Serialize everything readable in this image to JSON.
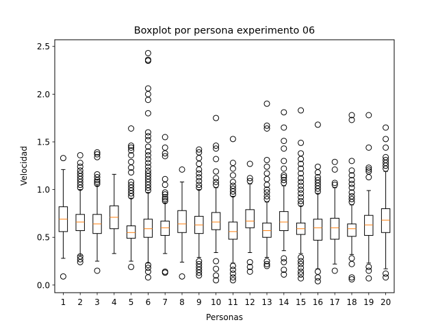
{
  "chart_data": {
    "type": "boxplot",
    "title": "Boxplot por persona experimento 06",
    "xlabel": "Personas",
    "ylabel": "Velocidad",
    "ylim": [
      -0.08,
      2.57
    ],
    "xlim": [
      0.5,
      20.5
    ],
    "yticks": [
      0.0,
      0.5,
      1.0,
      1.5,
      2.0,
      2.5
    ],
    "ytick_labels": [
      "0.0",
      "0.5",
      "1.0",
      "1.5",
      "2.0",
      "2.5"
    ],
    "grid": false,
    "box_color": "#000000",
    "median_color": "#ff7f0e",
    "categories": [
      "1",
      "2",
      "3",
      "4",
      "5",
      "6",
      "7",
      "8",
      "9",
      "10",
      "11",
      "12",
      "13",
      "14",
      "15",
      "16",
      "17",
      "18",
      "19",
      "20"
    ],
    "boxes": [
      {
        "label": "1",
        "whislo": 0.28,
        "q1": 0.56,
        "med": 0.69,
        "q3": 0.82,
        "whishi": 1.21,
        "fliers": [
          0.09,
          1.33
        ]
      },
      {
        "label": "2",
        "whislo": 0.31,
        "q1": 0.57,
        "med": 0.66,
        "q3": 0.74,
        "whishi": 1.0,
        "fliers": [
          0.24,
          0.27,
          0.3,
          1.02,
          1.05,
          1.08,
          1.11,
          1.14,
          1.17,
          1.2,
          1.24,
          1.28,
          1.36
        ]
      },
      {
        "label": "3",
        "whislo": 0.25,
        "q1": 0.54,
        "med": 0.64,
        "q3": 0.74,
        "whishi": 1.04,
        "fliers": [
          0.15,
          1.06,
          1.08,
          1.1,
          1.13,
          1.16,
          1.34,
          1.37,
          1.39
        ]
      },
      {
        "label": "4",
        "whislo": 0.33,
        "q1": 0.59,
        "med": 0.71,
        "q3": 0.83,
        "whishi": 1.16,
        "fliers": []
      },
      {
        "label": "5",
        "whislo": 0.25,
        "q1": 0.49,
        "med": 0.55,
        "q3": 0.62,
        "whishi": 0.91,
        "fliers": [
          0.19,
          0.93,
          0.96,
          0.99,
          1.02,
          1.05,
          1.08,
          1.18,
          1.23,
          1.29,
          1.36,
          1.41,
          1.44,
          1.46,
          1.64
        ]
      },
      {
        "label": "6",
        "whislo": 0.23,
        "q1": 0.5,
        "med": 0.59,
        "q3": 0.69,
        "whishi": 0.97,
        "fliers": [
          0.08,
          0.14,
          0.18,
          0.21,
          0.99,
          1.02,
          1.05,
          1.08,
          1.11,
          1.14,
          1.17,
          1.2,
          1.24,
          1.28,
          1.32,
          1.36,
          1.4,
          1.45,
          1.52,
          1.56,
          1.6,
          1.8,
          1.94,
          2.0,
          2.06,
          2.35,
          2.36,
          2.43
        ]
      },
      {
        "label": "7",
        "whislo": 0.33,
        "q1": 0.52,
        "med": 0.6,
        "q3": 0.67,
        "whishi": 0.86,
        "fliers": [
          0.13,
          0.14,
          0.88,
          0.9,
          0.92,
          0.95,
          0.97,
          1.05,
          1.11,
          1.35,
          1.38,
          1.44,
          1.55
        ]
      },
      {
        "label": "8",
        "whislo": 0.24,
        "q1": 0.55,
        "med": 0.64,
        "q3": 0.78,
        "whishi": 1.08,
        "fliers": [
          0.09,
          1.21
        ]
      },
      {
        "label": "9",
        "whislo": 0.29,
        "q1": 0.54,
        "med": 0.63,
        "q3": 0.72,
        "whishi": 1.0,
        "fliers": [
          0.1,
          0.13,
          0.16,
          0.19,
          0.22,
          0.25,
          1.02,
          1.05,
          1.09,
          1.13,
          1.17,
          1.21,
          1.27,
          1.33,
          1.39,
          1.42
        ]
      },
      {
        "label": "10",
        "whislo": 0.34,
        "q1": 0.58,
        "med": 0.66,
        "q3": 0.76,
        "whishi": 1.02,
        "fliers": [
          0.05,
          0.1,
          0.17,
          0.25,
          1.05,
          1.08,
          1.12,
          1.19,
          1.32,
          1.43,
          1.46,
          1.75
        ]
      },
      {
        "label": "11",
        "whislo": 0.23,
        "q1": 0.48,
        "med": 0.56,
        "q3": 0.66,
        "whishi": 0.93,
        "fliers": [
          0.05,
          0.08,
          0.12,
          0.16,
          0.2,
          0.95,
          0.98,
          1.01,
          1.04,
          1.08,
          1.15,
          1.22,
          1.28,
          1.53
        ]
      },
      {
        "label": "12",
        "whislo": 0.34,
        "q1": 0.6,
        "med": 0.67,
        "q3": 0.79,
        "whishi": 1.06,
        "fliers": [
          0.14,
          0.19,
          0.24,
          1.09,
          1.12,
          1.27
        ]
      },
      {
        "label": "13",
        "whislo": 0.29,
        "q1": 0.5,
        "med": 0.57,
        "q3": 0.65,
        "whishi": 0.87,
        "fliers": [
          0.2,
          0.22,
          0.25,
          0.9,
          0.93,
          0.97,
          1.0,
          1.05,
          1.11,
          1.17,
          1.24,
          1.31,
          1.64,
          1.67,
          1.9
        ]
      },
      {
        "label": "14",
        "whislo": 0.36,
        "q1": 0.57,
        "med": 0.66,
        "q3": 0.77,
        "whishi": 1.04,
        "fliers": [
          0.11,
          0.16,
          0.24,
          0.28,
          1.07,
          1.1,
          1.13,
          1.15,
          1.22,
          1.3,
          1.43,
          1.51,
          1.65,
          1.81
        ]
      },
      {
        "label": "15",
        "whislo": 0.33,
        "q1": 0.53,
        "med": 0.59,
        "q3": 0.65,
        "whishi": 0.83,
        "fliers": [
          0.07,
          0.11,
          0.14,
          0.18,
          0.22,
          0.25,
          0.29,
          0.85,
          0.88,
          0.92,
          0.96,
          1.0,
          1.04,
          1.08,
          1.12,
          1.17,
          1.22,
          1.27,
          1.32,
          1.38,
          1.49,
          1.83
        ]
      },
      {
        "label": "16",
        "whislo": 0.17,
        "q1": 0.47,
        "med": 0.6,
        "q3": 0.69,
        "whishi": 0.96,
        "fliers": [
          0.04,
          0.08,
          0.14,
          0.98,
          1.01,
          1.04,
          1.07,
          1.1,
          1.13,
          1.18,
          1.24,
          1.68
        ]
      },
      {
        "label": "17",
        "whislo": 0.22,
        "q1": 0.48,
        "med": 0.6,
        "q3": 0.7,
        "whishi": 1.02,
        "fliers": [
          0.15,
          1.05,
          1.07,
          1.21,
          1.29
        ]
      },
      {
        "label": "18",
        "whislo": 0.32,
        "q1": 0.51,
        "med": 0.59,
        "q3": 0.64,
        "whishi": 0.84,
        "fliers": [
          0.06,
          0.08,
          0.22,
          0.28,
          0.87,
          0.9,
          0.93,
          0.97,
          1.02,
          1.06,
          1.1,
          1.15,
          1.2,
          1.3,
          1.73,
          1.78
        ]
      },
      {
        "label": "19",
        "whislo": 0.23,
        "q1": 0.52,
        "med": 0.63,
        "q3": 0.73,
        "whishi": 0.99,
        "fliers": [
          0.07,
          0.15,
          0.19,
          1.13,
          1.19,
          1.21,
          1.23,
          1.44,
          1.78
        ]
      },
      {
        "label": "20",
        "whislo": 0.17,
        "q1": 0.55,
        "med": 0.68,
        "q3": 0.8,
        "whishi": 1.19,
        "fliers": [
          0.08,
          0.12,
          1.22,
          1.25,
          1.28,
          1.31,
          1.34,
          1.44,
          1.53,
          1.65
        ]
      }
    ]
  }
}
